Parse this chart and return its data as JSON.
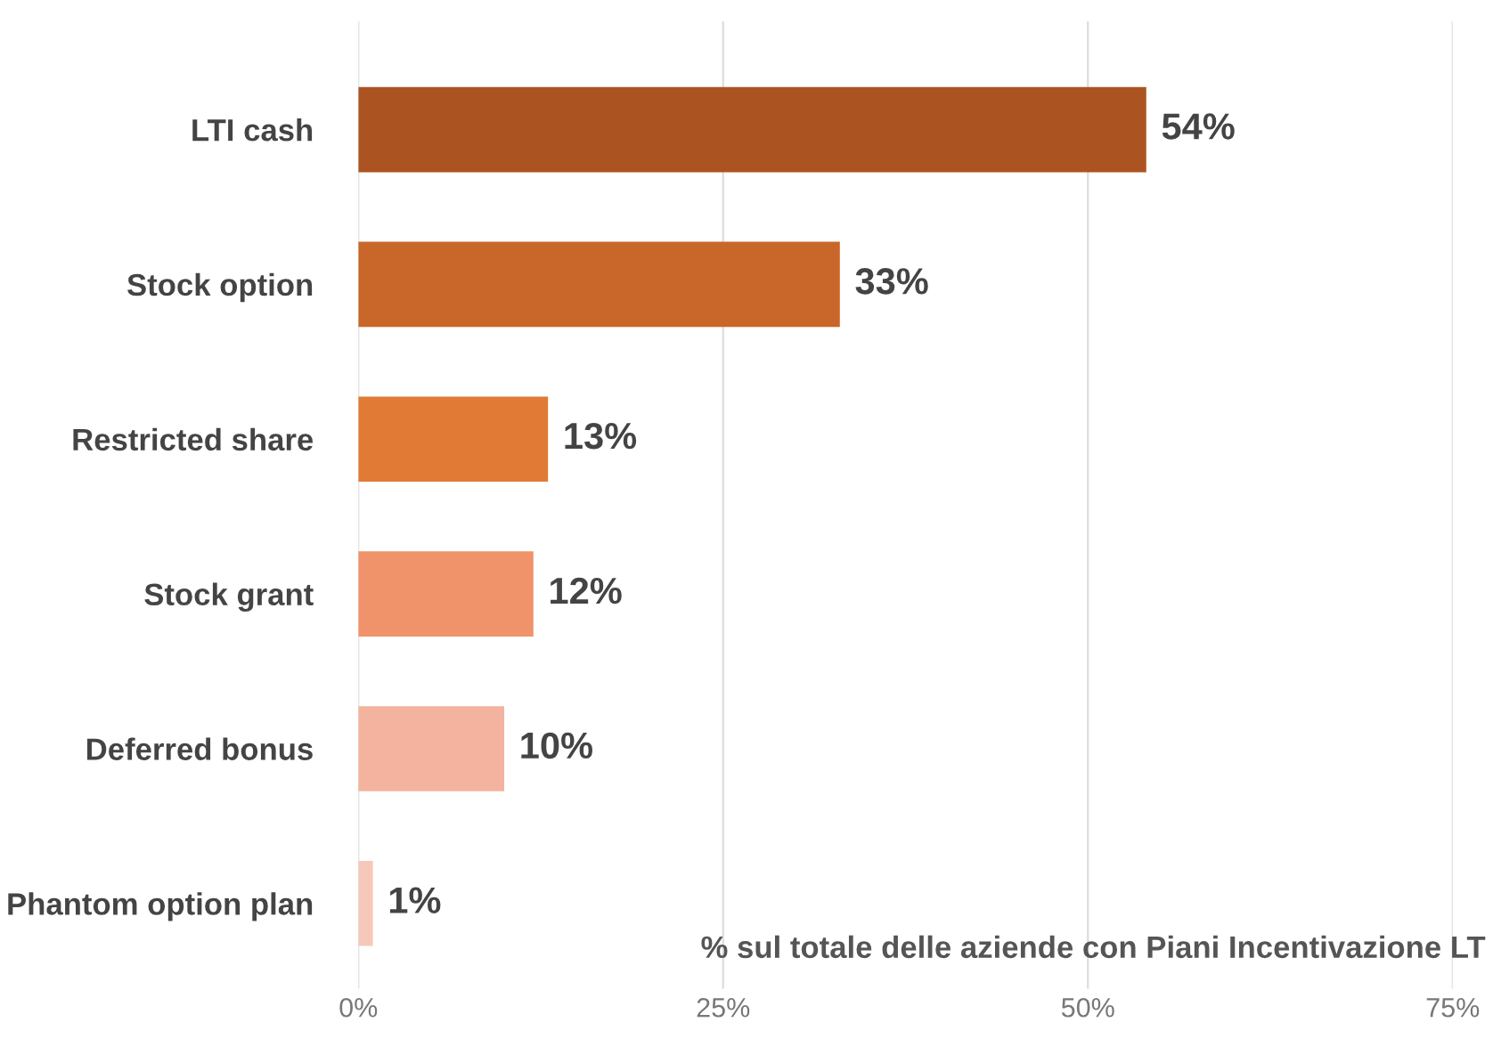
{
  "chart_data": {
    "type": "bar",
    "orientation": "horizontal",
    "categories": [
      "LTI cash",
      "Stock option",
      "Restricted share",
      "Stock grant",
      "Deferred bonus",
      "Phantom option plan"
    ],
    "values": [
      54,
      33,
      13,
      12,
      10,
      1
    ],
    "colors": [
      "#ac5421",
      "#c9662a",
      "#e07a35",
      "#f0936a",
      "#f3b39f",
      "#f6c8ba"
    ],
    "value_labels": [
      "54%",
      "33%",
      "13%",
      "12%",
      "10%",
      "1%"
    ],
    "xlabel": "% sul totale delle aziende con Piani Incentivazione LT",
    "xlim": [
      0,
      75
    ],
    "xticks": [
      {
        "value": 0,
        "label": "0%"
      },
      {
        "value": 25,
        "label": "25%"
      },
      {
        "value": 50,
        "label": "50%"
      },
      {
        "value": 75,
        "label": "75%"
      }
    ],
    "grid": "x",
    "legend": false
  }
}
